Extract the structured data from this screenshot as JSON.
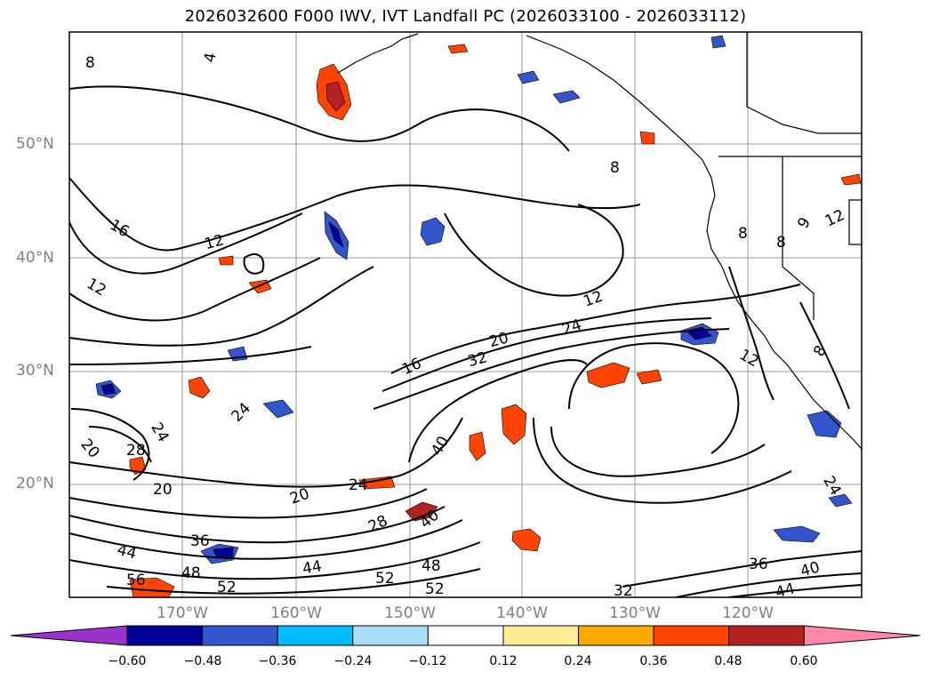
{
  "title": "2026032600 F000 IWV, IVT Landfall PC (2026033100 - 2026033112)",
  "lat_labels": [
    "50°N",
    "40°N",
    "30°N",
    "20°N"
  ],
  "lon_labels": [
    "170°W",
    "160°W",
    "150°W",
    "140°W",
    "130°W",
    "120°W"
  ],
  "colorbar": {
    "ticks": [
      "−0.60",
      "−0.48",
      "−0.36",
      "−0.24",
      "−0.12",
      "0.12",
      "0.24",
      "0.36",
      "0.48",
      "0.60"
    ],
    "colors": [
      "#9933cc",
      "#000099",
      "#3355cc",
      "#00bbff",
      "#aaddf8",
      "#ffffff",
      "#ffee99",
      "#ffaa00",
      "#ff4400",
      "#b22222",
      "#ff88aa"
    ]
  },
  "contour_labels": [
    "8",
    "4",
    "8",
    "16",
    "12",
    "12",
    "8",
    "8",
    "9",
    "12",
    "12",
    "20",
    "24",
    "32",
    "16",
    "12",
    "8",
    "24",
    "28",
    "20",
    "20",
    "24",
    "20",
    "24",
    "40",
    "28",
    "40",
    "44",
    "36",
    "48",
    "44",
    "52",
    "48",
    "56",
    "52",
    "52",
    "36",
    "40",
    "44",
    "24",
    "32"
  ]
}
